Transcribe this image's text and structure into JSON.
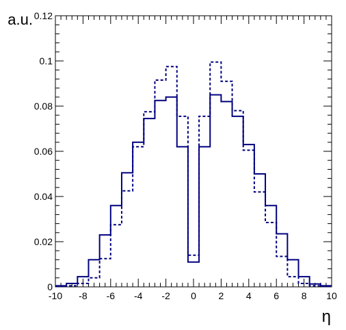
{
  "chart_data": {
    "type": "line",
    "step": true,
    "xlabel": "η",
    "ylabel": "a.u.",
    "xlim": [
      -10,
      10
    ],
    "ylim": [
      0,
      0.12
    ],
    "xticks": [
      -10,
      -8,
      -6,
      -4,
      -2,
      0,
      2,
      4,
      6,
      8,
      10
    ],
    "yticks": [
      0,
      0.02,
      0.04,
      0.06,
      0.08,
      0.1,
      0.12
    ],
    "grid": false,
    "bin_edges": [
      -10,
      -9.2,
      -8.4,
      -7.6,
      -6.8,
      -6,
      -5.2,
      -4.4,
      -3.6,
      -2.8,
      -2,
      -1.2,
      -0.4,
      0.4,
      1.2,
      2,
      2.8,
      3.6,
      4.4,
      5.2,
      6,
      6.8,
      7.6,
      8.4,
      9.2,
      10
    ],
    "series": [
      {
        "style": "solid",
        "color": "#00007f",
        "values": [
          0.0005,
          0.0015,
          0.0045,
          0.012,
          0.023,
          0.036,
          0.0505,
          0.064,
          0.0745,
          0.0825,
          0.084,
          0.062,
          0.011,
          0.062,
          0.085,
          0.082,
          0.0755,
          0.063,
          0.05,
          0.036,
          0.0235,
          0.012,
          0.0045,
          0.0013,
          0.0005
        ]
      },
      {
        "style": "dashed",
        "color": "#00007f",
        "values": [
          0.0002,
          0.0005,
          0.0015,
          0.004,
          0.0125,
          0.0275,
          0.0425,
          0.062,
          0.0775,
          0.0915,
          0.0975,
          0.0755,
          0.014,
          0.0755,
          0.0995,
          0.091,
          0.078,
          0.0605,
          0.042,
          0.0285,
          0.0135,
          0.0045,
          0.0015,
          0.0005,
          0.0002
        ]
      }
    ]
  }
}
